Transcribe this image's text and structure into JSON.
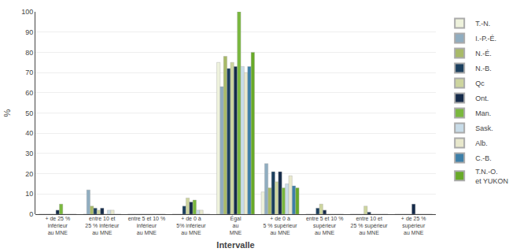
{
  "chart_data": {
    "type": "bar",
    "xlabel": "Intervalle",
    "ylabel": "%",
    "categories": [
      "+ de 25 %\ninférieur\nau MNE",
      "entre 10 et\n25 % inférieur\nau MNE",
      "entre 5 et 10 %\ninférieur\nau MNE",
      "+ de 0 à\n5% inférieur\nau MNE",
      "Égal\nau\nMNE",
      "+ de 0 à\n5 % supérieur\nau MNE",
      "entre 5 et 10 %\nsupérieur\nau MNE",
      "entre 10 et\n25 % supérieur\nau MNE",
      "+ de 25 %\nsupérieur\nau MNE"
    ],
    "series": [
      {
        "name": "T.-N.",
        "color": "#eef2dc",
        "values": [
          0,
          0,
          0,
          0,
          75,
          11,
          0,
          0,
          0
        ]
      },
      {
        "name": "I.-P.-É.",
        "color": "#90adc0",
        "values": [
          0,
          12,
          0,
          0,
          63,
          25,
          0,
          0,
          0
        ]
      },
      {
        "name": "N.-É.",
        "color": "#a8ba68",
        "values": [
          0,
          4,
          0,
          0,
          78,
          13,
          0,
          0,
          0
        ]
      },
      {
        "name": "N.-B.",
        "color": "#1b3f5e",
        "values": [
          0,
          3,
          0,
          4,
          72,
          21,
          3,
          0,
          0
        ]
      },
      {
        "name": "Qc",
        "color": "#cdd59e",
        "values": [
          0,
          2,
          0,
          8,
          75,
          16,
          5,
          4,
          0
        ]
      },
      {
        "name": "Ont.",
        "color": "#152b4a",
        "values": [
          2,
          3,
          0,
          6,
          73,
          21,
          2,
          1,
          5
        ]
      },
      {
        "name": "Man.",
        "color": "#7ab83e",
        "values": [
          5,
          0,
          0,
          7,
          100,
          13,
          0,
          0,
          0
        ]
      },
      {
        "name": "Sask.",
        "color": "#c8dce8",
        "values": [
          0,
          2,
          0,
          2,
          73,
          15,
          0,
          0,
          0
        ]
      },
      {
        "name": "Alb.",
        "color": "#e8e8cc",
        "values": [
          0,
          2,
          0,
          2,
          70,
          19,
          0,
          0,
          0
        ]
      },
      {
        "name": "C.-B.",
        "color": "#3d7fa8",
        "values": [
          0,
          0,
          0,
          0,
          73,
          14,
          0,
          0,
          0
        ]
      },
      {
        "name": "T.N.-O.\net YUKON",
        "color": "#68aa28",
        "values": [
          0,
          0,
          0,
          0,
          80,
          13,
          0,
          0,
          0
        ]
      }
    ],
    "ylim": [
      0,
      100
    ],
    "yticks": [
      0,
      10,
      20,
      30,
      40,
      50,
      60,
      70,
      80,
      90,
      100
    ],
    "grid": true,
    "legend": "right"
  }
}
